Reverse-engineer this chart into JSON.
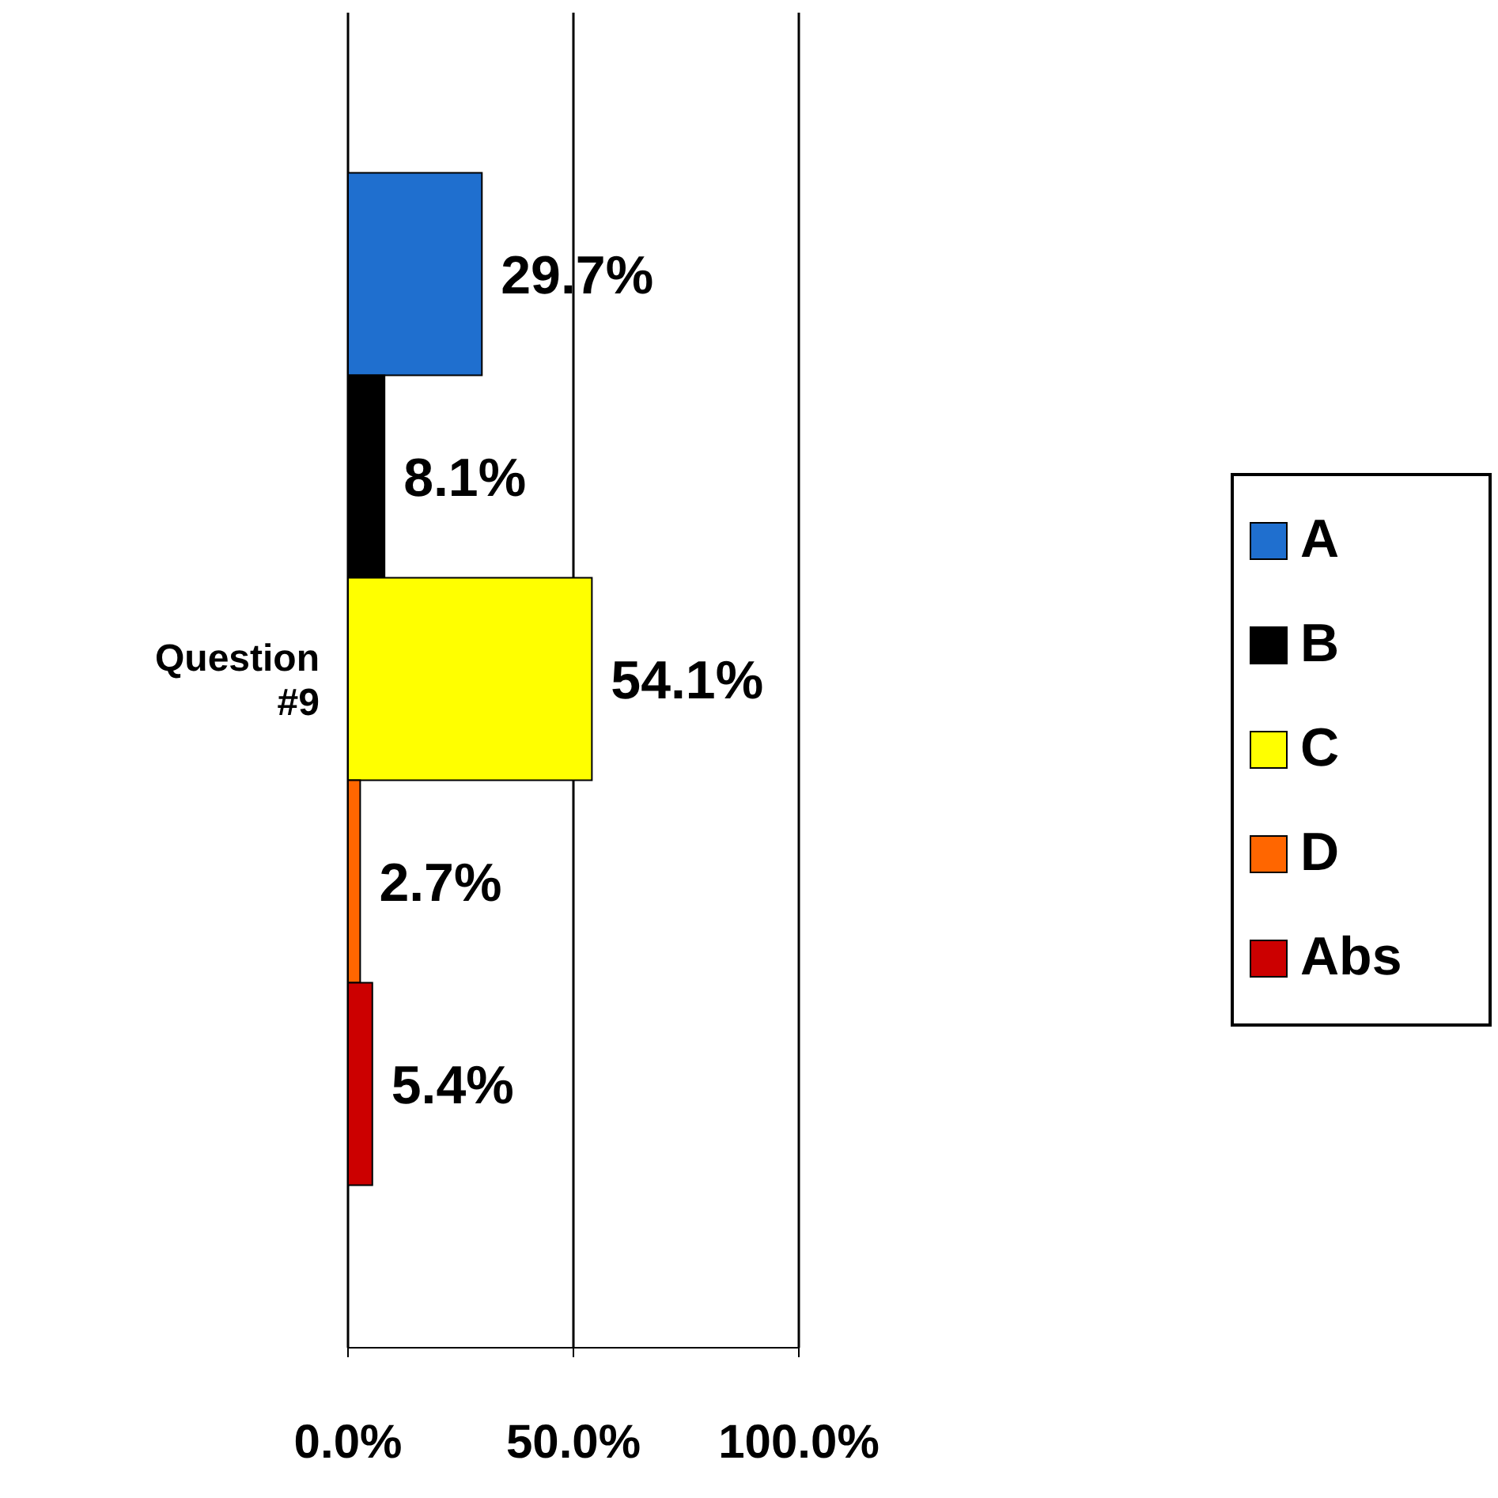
{
  "chart_data": {
    "type": "bar",
    "orientation": "horizontal",
    "categories": [
      "Question #9"
    ],
    "series": [
      {
        "name": "A",
        "color": "#1f6fcf",
        "values": [
          29.7
        ],
        "value_labels": [
          "29.7%"
        ]
      },
      {
        "name": "B",
        "color": "#000000",
        "values": [
          8.1
        ],
        "value_labels": [
          "8.1%"
        ]
      },
      {
        "name": "C",
        "color": "#ffff00",
        "values": [
          54.1
        ],
        "value_labels": [
          "54.1%"
        ]
      },
      {
        "name": "D",
        "color": "#ff6600",
        "values": [
          2.7
        ],
        "value_labels": [
          "2.7%"
        ]
      },
      {
        "name": "Abs",
        "color": "#cc0000",
        "values": [
          5.4
        ],
        "value_labels": [
          "5.4%"
        ]
      }
    ],
    "xlim": [
      0,
      100
    ],
    "xticks": [
      {
        "value": 0,
        "label": "0.0%"
      },
      {
        "value": 50,
        "label": "50.0%"
      },
      {
        "value": 100,
        "label": "100.0%"
      }
    ],
    "grid": "x",
    "legend": "right"
  }
}
